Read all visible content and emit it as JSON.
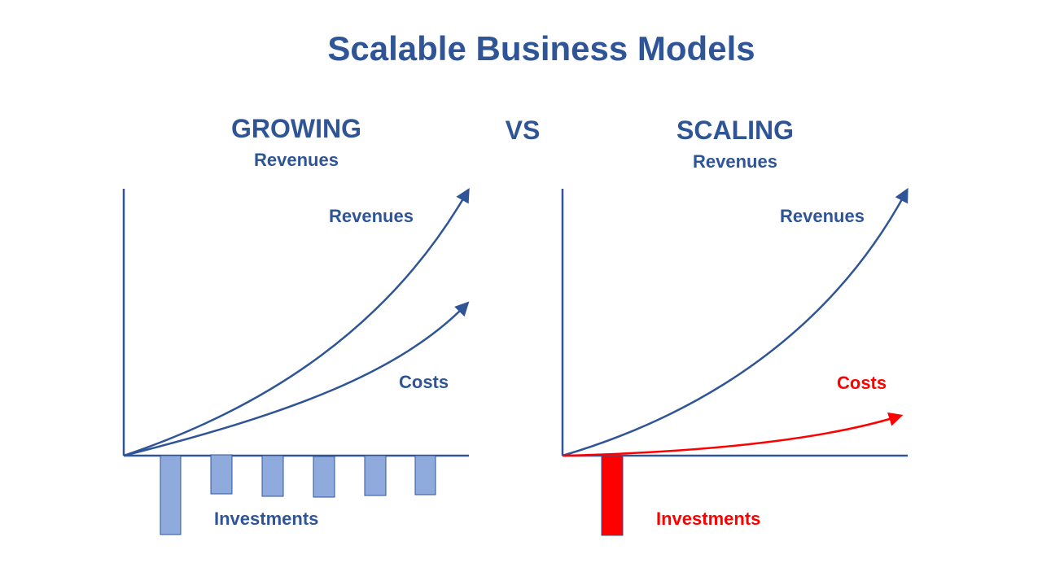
{
  "title": "Scalable Business Models",
  "vs_label": "VS",
  "colors": {
    "primary": "#2F5597",
    "bar_fill": "#8FAADC",
    "highlight": "#FF0000"
  },
  "panels": {
    "growing": {
      "heading": "GROWING",
      "subheading": "Revenues",
      "revenues_label": "Revenues",
      "costs_label": "Costs",
      "investments_label": "Investments",
      "investment_bars_count": 6
    },
    "scaling": {
      "heading": "SCALING",
      "subheading": "Revenues",
      "revenues_label": "Revenues",
      "costs_label": "Costs",
      "investments_label": "Investments",
      "investment_bars_count": 1
    }
  }
}
